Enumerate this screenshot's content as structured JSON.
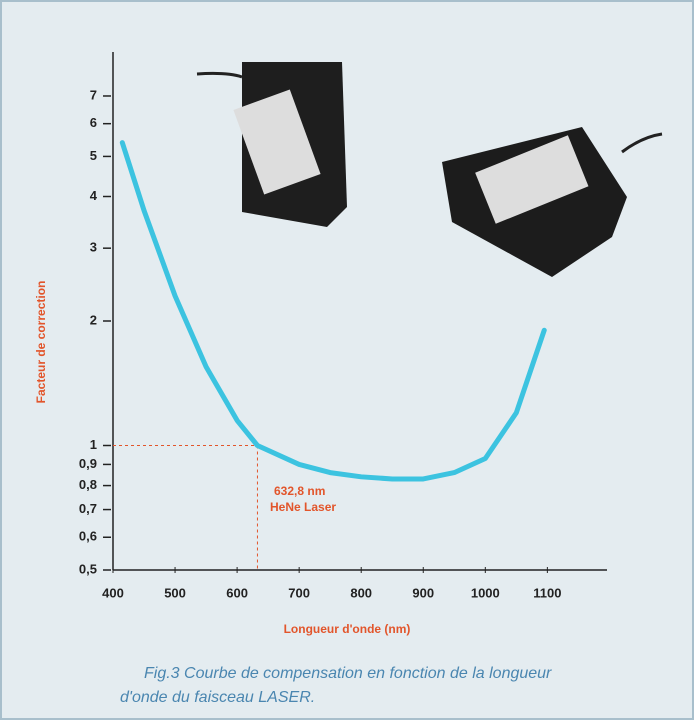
{
  "chart_data": {
    "type": "line",
    "yscale": "log",
    "xlabel": "Longueur d'onde (nm)",
    "ylabel": "Facteur de correction",
    "x": [
      415,
      450,
      500,
      550,
      600,
      632.8,
      700,
      750,
      800,
      850,
      900,
      950,
      1000,
      1050,
      1095
    ],
    "series": [
      {
        "color": "#3cc3e0",
        "values": [
          5.4,
          3.7,
          2.3,
          1.55,
          1.15,
          1.0,
          0.9,
          0.86,
          0.84,
          0.83,
          0.83,
          0.86,
          0.93,
          1.2,
          1.9
        ]
      }
    ],
    "xlim": [
      400,
      1180
    ],
    "xticks": [
      400,
      500,
      600,
      700,
      800,
      900,
      1000,
      1100
    ],
    "ylim": [
      0.5,
      8
    ],
    "yticks": [
      {
        "value": 0.5,
        "label": "0,5"
      },
      {
        "value": 0.6,
        "label": "0,6"
      },
      {
        "value": 0.7,
        "label": "0,7"
      },
      {
        "value": 0.8,
        "label": "0,8"
      },
      {
        "value": 0.9,
        "label": "0,9"
      },
      1,
      2,
      3,
      4,
      5,
      6,
      7
    ],
    "reference": {
      "x": 632.8,
      "y": 1,
      "label": [
        "632,8 nm",
        "HeNe Laser"
      ]
    },
    "caption": [
      "Fig.3 Courbe de compensation en fonction de la longueur",
      "d'onde du faisceau LASER."
    ]
  }
}
